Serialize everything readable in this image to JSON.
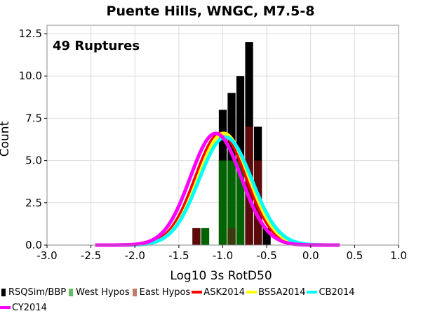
{
  "chart_data": {
    "type": "bar",
    "title": "Puente Hills, WNGC, M7.5-8",
    "xlabel": "Log10 3s RotD50",
    "ylabel": "Count",
    "annotation": "49 Ruptures",
    "xlim": [
      -3.0,
      1.0
    ],
    "ylim": [
      0.0,
      13.0
    ],
    "x_ticks": [
      "-3.0",
      "-2.5",
      "-2.0",
      "-1.5",
      "-1.0",
      "-0.5",
      "0.0",
      "0.5",
      "1.0"
    ],
    "y_ticks": [
      "0.0",
      "2.5",
      "5.0",
      "7.5",
      "10.0",
      "12.5"
    ],
    "bin_width": 0.1,
    "bins": [
      {
        "x": -1.3,
        "total": 1,
        "west": 0,
        "east": 1
      },
      {
        "x": -1.2,
        "total": 1,
        "west": 1,
        "east": 0
      },
      {
        "x": -1.0,
        "total": 8,
        "west": 5,
        "east": 0
      },
      {
        "x": -0.9,
        "total": 9,
        "west": 5,
        "east": 1
      },
      {
        "x": -0.8,
        "total": 10,
        "west": 5,
        "east": 0
      },
      {
        "x": -0.7,
        "total": 12,
        "west": 0,
        "east": 7
      },
      {
        "x": -0.6,
        "total": 7,
        "west": 0,
        "east": 5
      },
      {
        "x": -0.5,
        "total": 1,
        "west": 0,
        "east": 0
      }
    ],
    "curves": [
      {
        "name": "ASK2014",
        "mean": -1.02,
        "sigma": 0.29,
        "color": "#ff0000"
      },
      {
        "name": "BSSA2014",
        "mean": -0.99,
        "sigma": 0.29,
        "color": "#ffff00"
      },
      {
        "name": "CB2014",
        "mean": -0.97,
        "sigma": 0.3,
        "color": "#00ffff"
      },
      {
        "name": "CY2014",
        "mean": -1.08,
        "sigma": 0.29,
        "color": "#ff00ff"
      }
    ],
    "curve_x_range": [
      -2.45,
      0.33
    ],
    "curve_scale": 0.98,
    "grid": true
  },
  "legend": {
    "items": [
      {
        "label": "RSQSim/BBP",
        "kind": "bar",
        "color": "#000000"
      },
      {
        "label": "West Hypos",
        "kind": "bar",
        "color": "#66bb66"
      },
      {
        "label": "East Hypos",
        "kind": "bar",
        "color": "#c07a6e"
      },
      {
        "label": "ASK2014",
        "kind": "line",
        "color": "#ff0000"
      },
      {
        "label": "BSSA2014",
        "kind": "line",
        "color": "#ffff00"
      },
      {
        "label": "CB2014",
        "kind": "line",
        "color": "#00ffff"
      },
      {
        "label": "CY2014",
        "kind": "line",
        "color": "#ff00ff"
      }
    ]
  },
  "colors": {
    "total_bar": "#000000",
    "west_bar": "#006400",
    "east_bar": "#5c0a0a",
    "overlap_bar": "#3c3a0a",
    "grid": "#dcdcdc"
  }
}
